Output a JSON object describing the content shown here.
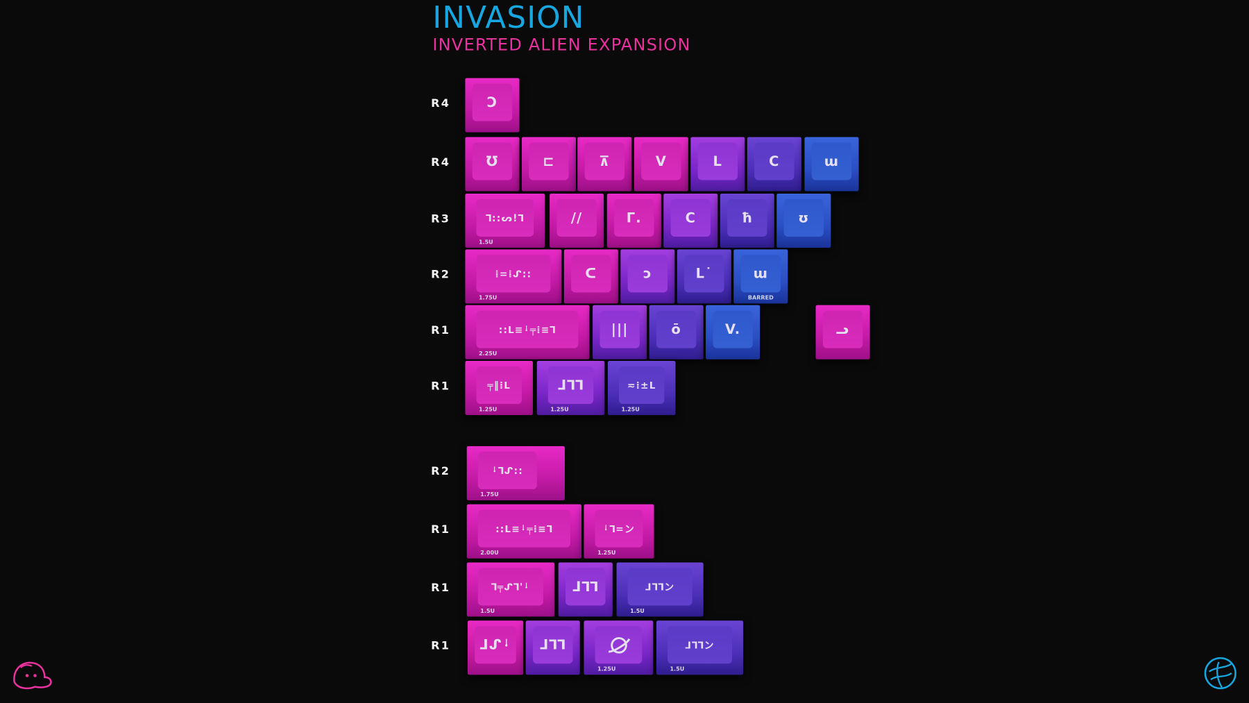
{
  "header": {
    "title": "INVASION",
    "subtitle": "INVERTED ALIEN EXPANSION"
  },
  "colors": {
    "title": "#17a6e0",
    "subtitle": "#e8329e",
    "pink": "#d81fb8",
    "purple": "#8a2fd4",
    "indigo": "#5836c0",
    "blue": "#2f52c8"
  },
  "rows": [
    {
      "label": "R4",
      "keys": [
        {
          "legend": "Ɔ",
          "color": "pink"
        }
      ]
    },
    {
      "label": "R4",
      "keys": [
        {
          "legend": "Ʊ",
          "color": "pink"
        },
        {
          "legend": "⊏",
          "color": "pink"
        },
        {
          "legend": "⊼",
          "color": "pink"
        },
        {
          "legend": "V",
          "color": "pink"
        },
        {
          "legend": "L",
          "color": "purple"
        },
        {
          "legend": "Ⅽ",
          "color": "indigo"
        },
        {
          "legend": "ɯ",
          "color": "blue"
        }
      ]
    },
    {
      "label": "R3",
      "keys": [
        {
          "legend": "ꓶ::ᔕ!ꓶ",
          "color": "pink",
          "size": "1.5U"
        },
        {
          "legend": "//",
          "color": "pink"
        },
        {
          "legend": "Γ.",
          "color": "pink"
        },
        {
          "legend": "Ⅽ",
          "color": "purple"
        },
        {
          "legend": "ħ",
          "color": "indigo"
        },
        {
          "legend": "ʊ",
          "color": "blue"
        }
      ]
    },
    {
      "label": "R2",
      "keys": [
        {
          "legend": "⁞=⁞ᔑ::",
          "color": "pink",
          "size": "1.75U"
        },
        {
          "legend": "ᑕ",
          "color": "pink"
        },
        {
          "legend": "ↄ",
          "color": "purple"
        },
        {
          "legend": "L˙",
          "color": "indigo"
        },
        {
          "legend": "ɯ",
          "color": "blue",
          "note": "BARRED"
        }
      ]
    },
    {
      "label": "R1",
      "keys": [
        {
          "legend": "::ᒪ≡ᛍ╤⁞≡ꓶ",
          "color": "pink",
          "size": "2.25U"
        },
        {
          "legend": "|||",
          "color": "purple"
        },
        {
          "legend": "ō",
          "color": "indigo"
        },
        {
          "legend": "V.",
          "color": "blue"
        },
        {
          "legend": "ᓗ",
          "color": "pink"
        }
      ]
    },
    {
      "label": "R1",
      "keys": [
        {
          "legend": "╤‖⁞ᒪ",
          "color": "pink",
          "size": "1.25U"
        },
        {
          "legend": "ᒧꓶꓶ",
          "color": "purple",
          "size": "1.25U"
        },
        {
          "legend": "≂⁞±ᒪ",
          "color": "indigo",
          "size": "1.25U"
        }
      ]
    },
    {
      "label": "R2",
      "keys": [
        {
          "legend": "ᛍꓶᔑ::",
          "color": "pink",
          "size": "1.75U"
        }
      ]
    },
    {
      "label": "R1",
      "keys": [
        {
          "legend": "::ᒪ≡ᛍ╤⁞≡ꓶ",
          "color": "pink",
          "size": "2.00U"
        },
        {
          "legend": "ᛍꓶ=ン",
          "color": "pink",
          "size": "1.25U"
        }
      ]
    },
    {
      "label": "R1",
      "keys": [
        {
          "legend": "ꓶ╤ᔑꓶ'ᛍ",
          "color": "pink",
          "size": "1.5U"
        },
        {
          "legend": "ᒧꓶꓶ",
          "color": "purple"
        },
        {
          "legend": "ᒧꓶꓶン",
          "color": "indigo",
          "size": "1.5U"
        }
      ]
    },
    {
      "label": "R1",
      "keys": [
        {
          "legend": "ᒧᔑᛍ",
          "color": "pink"
        },
        {
          "legend": "ᒧꓶꓶ",
          "color": "purple"
        },
        {
          "legend": "planet-icon",
          "color": "purple",
          "size": "1.25U"
        },
        {
          "legend": "ᒧꓶꓶン",
          "color": "indigo",
          "size": "1.5U"
        }
      ]
    }
  ],
  "logos": {
    "left": "pink-creature-logo",
    "right": "blue-globe-logo"
  }
}
